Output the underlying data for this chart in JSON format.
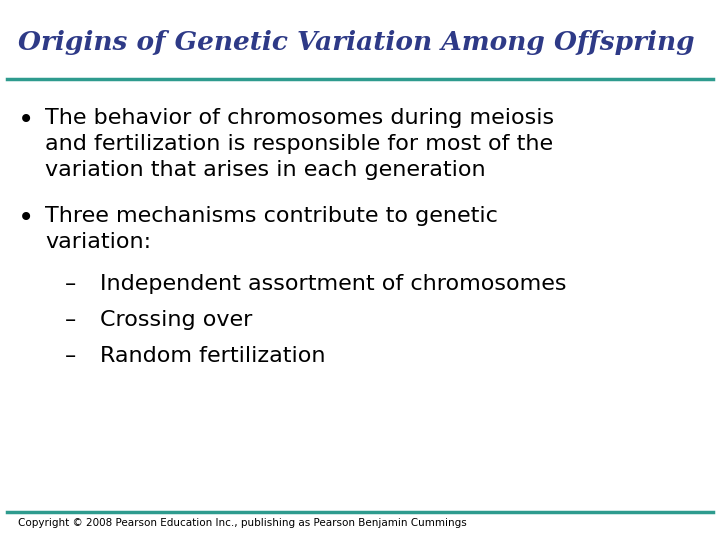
{
  "title": "Origins of Genetic Variation Among Offspring",
  "title_color": "#2E3A87",
  "title_fontsize": 19,
  "bg_color": "#FFFFFF",
  "line_color": "#2E9B8E",
  "line_thickness": 2.5,
  "bullet1_lines": [
    "The behavior of chromosomes during meiosis",
    "and fertilization is responsible for most of the",
    "variation that arises in each generation"
  ],
  "bullet2_lines": [
    "Three mechanisms contribute to genetic",
    "variation:"
  ],
  "sub_bullets": [
    "Independent assortment of chromosomes",
    "Crossing over",
    "Random fertilization"
  ],
  "bullet_color": "#000000",
  "bullet_fontsize": 16,
  "sub_bullet_fontsize": 16,
  "copyright": "Copyright © 2008 Pearson Education Inc., publishing as Pearson Benjamin Cummings",
  "copyright_fontsize": 7.5,
  "copyright_color": "#000000",
  "figwidth": 7.2,
  "figheight": 5.4,
  "dpi": 100
}
